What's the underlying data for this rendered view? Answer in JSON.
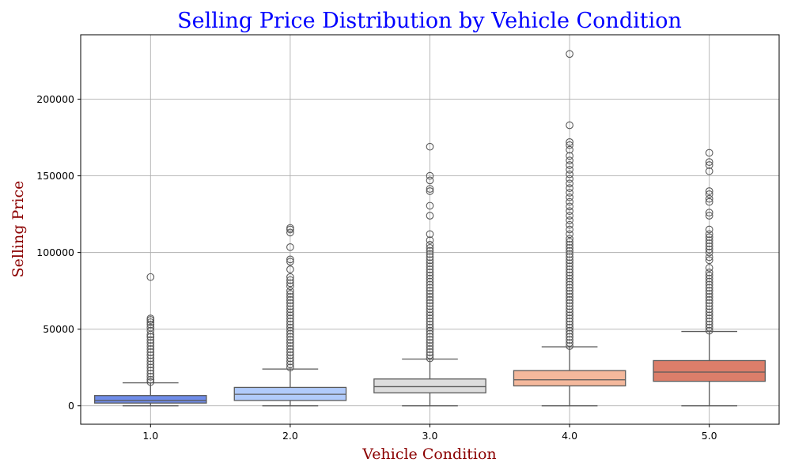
{
  "chart_data": {
    "type": "box",
    "title": "Selling Price Distribution by Vehicle Condition",
    "xlabel": "Vehicle Condition",
    "ylabel": "Selling Price",
    "categories": [
      "1.0",
      "2.0",
      "3.0",
      "4.0",
      "5.0"
    ],
    "ylim": [
      -12000,
      242000
    ],
    "yticks": [
      0,
      50000,
      100000,
      150000,
      200000
    ],
    "grid": true,
    "boxes": [
      {
        "category": "1.0",
        "color": "#6f8ce9",
        "whisker_low": 0,
        "q1": 1800,
        "median": 3500,
        "q3": 6700,
        "whisker_high": 15000,
        "outlier_max": 84000,
        "outliers": [
          15500,
          17000,
          19000,
          21000,
          23000,
          25000,
          27000,
          29000,
          31000,
          33000,
          35000,
          37000,
          39000,
          41000,
          43000,
          45000,
          46500,
          49000,
          51000,
          53000,
          54500,
          56000,
          57000,
          84000
        ]
      },
      {
        "category": "2.0",
        "color": "#b1cbfb",
        "whisker_low": 0,
        "q1": 3500,
        "median": 7500,
        "q3": 12000,
        "whisker_high": 24000,
        "outlier_max": 116000,
        "outliers": [
          25000,
          27000,
          29000,
          31000,
          33000,
          35000,
          37000,
          39000,
          41000,
          43000,
          45000,
          47000,
          49000,
          51000,
          53000,
          55000,
          57000,
          59000,
          61000,
          63000,
          65000,
          67000,
          69000,
          71000,
          73000,
          75000,
          78000,
          80000,
          82000,
          84000,
          89000,
          94000,
          95500,
          103500,
          113000,
          115000,
          116000
        ]
      },
      {
        "category": "3.0",
        "color": "#dddddd",
        "whisker_low": 0,
        "q1": 8500,
        "median": 12500,
        "q3": 17500,
        "whisker_high": 30500,
        "outlier_max": 169000,
        "outliers": [
          31000,
          33000,
          35000,
          37000,
          39000,
          41000,
          43000,
          45000,
          47000,
          49000,
          51000,
          53000,
          55000,
          57000,
          59000,
          61000,
          63000,
          65000,
          67000,
          69000,
          71000,
          73000,
          75000,
          77000,
          79000,
          81000,
          83000,
          85000,
          87000,
          89000,
          91000,
          93000,
          95000,
          97000,
          99000,
          101000,
          103000,
          105000,
          108000,
          112000,
          124000,
          130500,
          140000,
          141500,
          147000,
          150000,
          169000
        ]
      },
      {
        "category": "4.0",
        "color": "#f4b89c",
        "whisker_low": 0,
        "q1": 13000,
        "median": 17000,
        "q3": 23000,
        "whisker_high": 38500,
        "outlier_max": 229500,
        "outliers": [
          39000,
          41000,
          43000,
          45000,
          47000,
          49000,
          51000,
          53000,
          55000,
          57000,
          59000,
          61000,
          63000,
          65000,
          67000,
          69000,
          71000,
          73000,
          75000,
          77000,
          79000,
          81000,
          83000,
          85000,
          87000,
          89000,
          91000,
          93000,
          95000,
          97000,
          99000,
          101000,
          103000,
          105000,
          107000,
          109000,
          112000,
          115000,
          118000,
          121000,
          124000,
          127000,
          130000,
          133000,
          136000,
          139000,
          142000,
          145000,
          148000,
          151000,
          154000,
          157000,
          160000,
          163000,
          167000,
          170000,
          172000,
          183000,
          229500
        ]
      },
      {
        "category": "5.0",
        "color": "#dc7e6a",
        "whisker_low": 0,
        "q1": 16000,
        "median": 22000,
        "q3": 29500,
        "whisker_high": 48500,
        "outlier_max": 165000,
        "outliers": [
          49000,
          51000,
          53000,
          55000,
          57000,
          59000,
          61000,
          63000,
          65000,
          67000,
          69000,
          71000,
          73000,
          75000,
          77000,
          79000,
          81000,
          83000,
          85000,
          87000,
          90000,
          95000,
          97000,
          100000,
          102000,
          104000,
          106000,
          108000,
          110000,
          112000,
          115000,
          124000,
          126000,
          133000,
          135000,
          138000,
          140000,
          153000,
          157000,
          159000,
          165000
        ]
      }
    ]
  }
}
